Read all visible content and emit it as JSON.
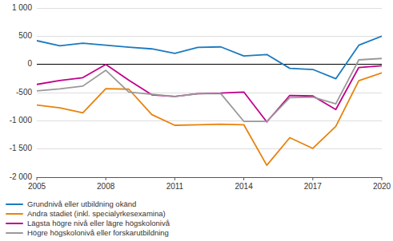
{
  "chart_data": {
    "type": "line",
    "x": [
      2005,
      2006,
      2007,
      2008,
      2009,
      2010,
      2011,
      2012,
      2013,
      2014,
      2015,
      2016,
      2017,
      2018,
      2019,
      2020
    ],
    "series": [
      {
        "name": "Grundnivå eller utbildning okänd",
        "color": "#1a7abf",
        "values": [
          420,
          330,
          375,
          340,
          305,
          275,
          195,
          300,
          310,
          150,
          175,
          -70,
          -90,
          -255,
          340,
          500
        ]
      },
      {
        "name": "Andra stadiet (inkl. specialyrkesexamina)",
        "color": "#e8820c",
        "values": [
          -720,
          -770,
          -860,
          -430,
          -440,
          -890,
          -1080,
          -1070,
          -1060,
          -1070,
          -1790,
          -1300,
          -1490,
          -1100,
          -290,
          -150
        ]
      },
      {
        "name": "Lägsta högre nivå eller lägre högskolonivå",
        "color": "#c0008a",
        "values": [
          -355,
          -285,
          -235,
          0,
          -280,
          -540,
          -570,
          -520,
          -510,
          -490,
          -1020,
          -550,
          -560,
          -800,
          -55,
          -25
        ]
      },
      {
        "name": "Högre högskolonivå eller forskarutbildning",
        "color": "#999999",
        "values": [
          -470,
          -435,
          -385,
          -105,
          -490,
          -530,
          -570,
          -520,
          -520,
          -1010,
          -1010,
          -590,
          -580,
          -700,
          80,
          105
        ]
      }
    ],
    "xlim": [
      2005,
      2020
    ],
    "xticks": [
      2005,
      2008,
      2011,
      2014,
      2017,
      2020
    ],
    "ylim": [
      -2000,
      1000
    ],
    "yticks": [
      {
        "value": -2000,
        "label": "-2 000"
      },
      {
        "value": -1500,
        "label": "-1 500"
      },
      {
        "value": -1000,
        "label": "-1 000"
      },
      -500,
      0,
      500,
      {
        "value": 1000,
        "label": "1 000"
      }
    ],
    "grid": true,
    "legend": "bottom-left"
  }
}
